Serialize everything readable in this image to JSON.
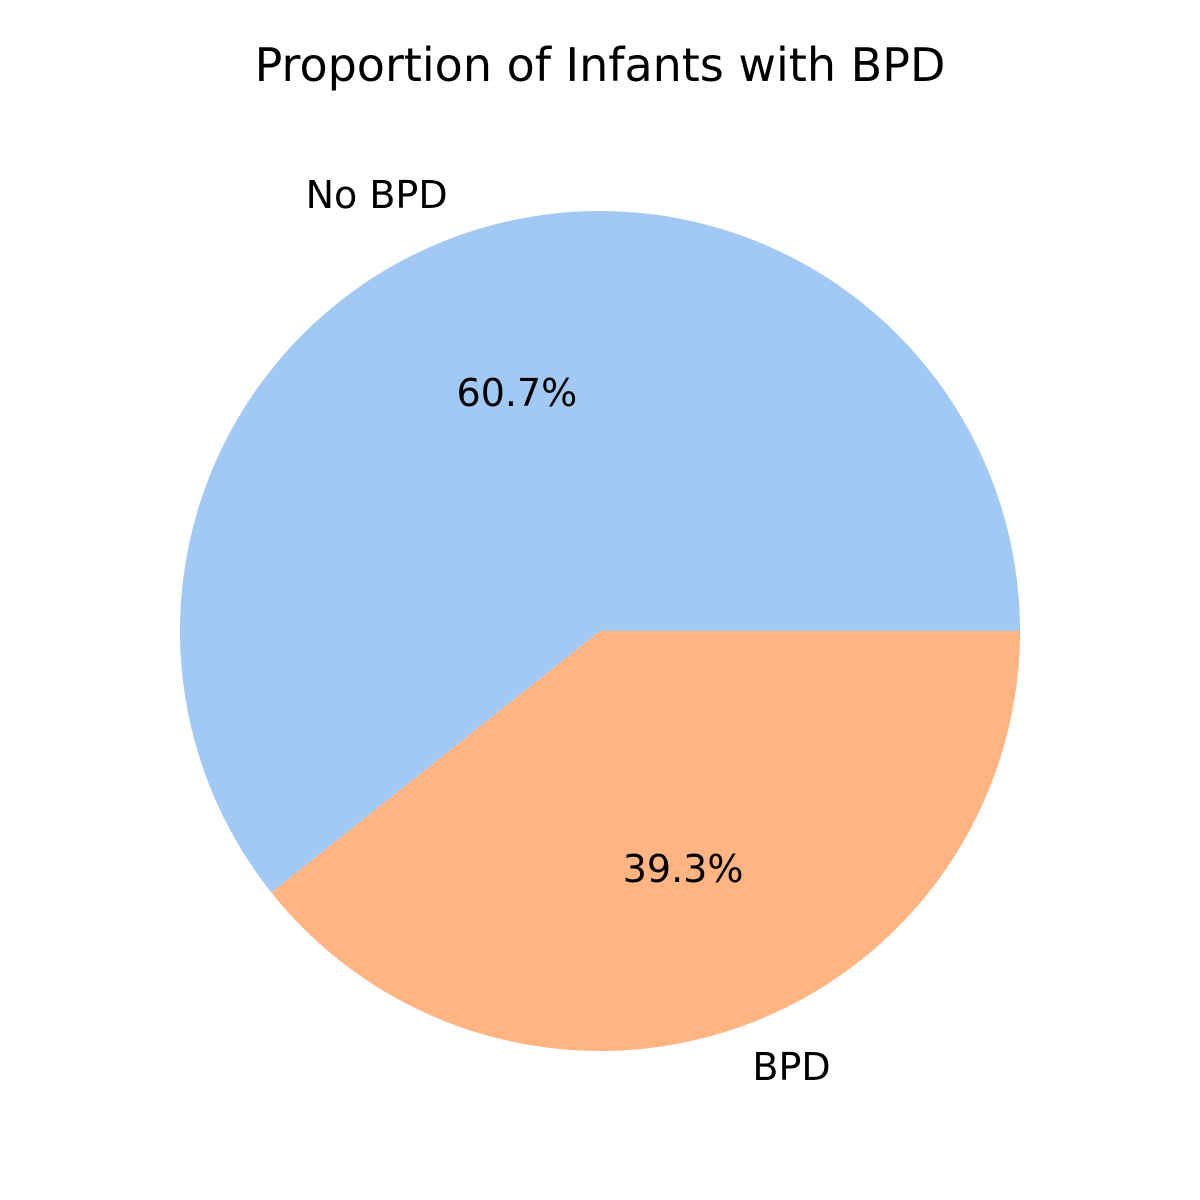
{
  "chart_data": {
    "type": "pie",
    "title": "Proportion of Infants with BPD",
    "start_angle_deg": 0,
    "direction": "counterclockwise",
    "slices": [
      {
        "label": "No BPD",
        "value": 60.7,
        "percent_label": "60.7%",
        "color": "#a1c9f4"
      },
      {
        "label": "BPD",
        "value": 39.3,
        "percent_label": "39.3%",
        "color": "#ffb482"
      }
    ]
  }
}
